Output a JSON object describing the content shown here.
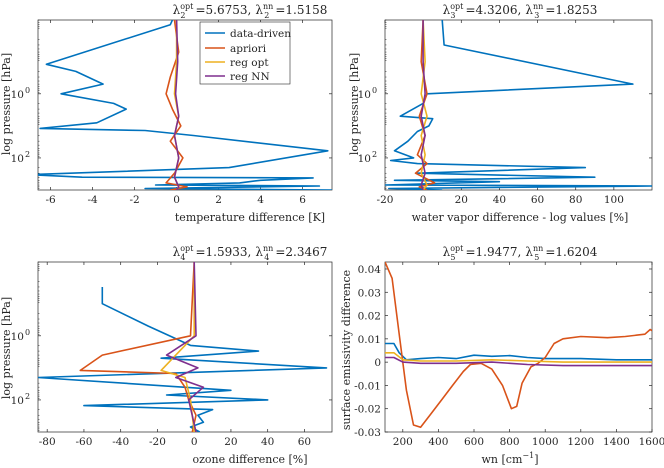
{
  "series_colors": {
    "data-driven": "#0072BD",
    "apriori": "#D95319",
    "reg opt": "#EDB120",
    "reg NN": "#7E2F8E"
  },
  "legend": [
    "data-driven",
    "apriori",
    "reg opt",
    "reg NN"
  ],
  "chart_data": [
    {
      "type": "line",
      "panel": "top-left",
      "title": "λ₂^opt =5.6753, λ₂^nn =1.5158",
      "title_parts": {
        "lambda_sub": "2",
        "opt_val": "=5.6753,",
        "nn_val": "=1.5158"
      },
      "xlabel": "temperature difference [K]",
      "ylabel": "log pressure [hPa]",
      "y_scale": "log-reversed",
      "xlim": [
        -6.6,
        7.4
      ],
      "ylim": [
        0.005,
        1000
      ],
      "xticks": [
        -6,
        -4,
        -2,
        0,
        2,
        4,
        6
      ],
      "xticklabels": [
        "-6",
        "-4",
        "-2",
        "0",
        "2",
        "4",
        "6"
      ],
      "yticks": [
        1,
        100
      ],
      "yticklabels": [
        "10^0",
        "10^2"
      ],
      "legend_position": "top-right",
      "series": [
        {
          "name": "data-driven",
          "points": [
            [
              -0.2,
              0.005
            ],
            [
              -0.3,
              0.007
            ],
            [
              -6.2,
              0.12
            ],
            [
              -4.8,
              0.2
            ],
            [
              -3.5,
              0.5
            ],
            [
              -5.5,
              1
            ],
            [
              -3,
              2
            ],
            [
              -2.4,
              3
            ],
            [
              -3.8,
              8
            ],
            [
              -6.5,
              12
            ],
            [
              -1.5,
              14
            ],
            [
              0.8,
              20
            ],
            [
              7.2,
              60
            ],
            [
              2.5,
              200
            ],
            [
              -7,
              330
            ],
            [
              -4.5,
              400
            ],
            [
              6.5,
              420
            ],
            [
              4,
              500
            ],
            [
              3,
              600
            ],
            [
              -1,
              700
            ],
            [
              6.8,
              750
            ],
            [
              -1.5,
              900
            ],
            [
              7.4,
              1000
            ]
          ]
        },
        {
          "name": "apriori",
          "points": [
            [
              -0.1,
              0.005
            ],
            [
              0.1,
              0.05
            ],
            [
              -0.3,
              0.3
            ],
            [
              -0.5,
              1
            ],
            [
              -0.2,
              3
            ],
            [
              0.2,
              10
            ],
            [
              -0.3,
              30
            ],
            [
              0.3,
              100
            ],
            [
              -0.1,
              300
            ],
            [
              -0.5,
              600
            ],
            [
              0.5,
              800
            ],
            [
              -0.3,
              1000
            ]
          ]
        },
        {
          "name": "reg opt",
          "points": [
            [
              0,
              0.005
            ],
            [
              0,
              0.1
            ],
            [
              -0.1,
              1
            ],
            [
              0.1,
              5
            ],
            [
              -0.1,
              20
            ],
            [
              0.1,
              100
            ],
            [
              -0.1,
              400
            ],
            [
              0.1,
              800
            ],
            [
              0,
              1000
            ]
          ]
        },
        {
          "name": "reg NN",
          "points": [
            [
              0,
              0.005
            ],
            [
              0.05,
              0.1
            ],
            [
              -0.05,
              1
            ],
            [
              0.1,
              5
            ],
            [
              -0.1,
              20
            ],
            [
              0.1,
              100
            ],
            [
              -0.1,
              400
            ],
            [
              0.1,
              800
            ],
            [
              0,
              1000
            ]
          ]
        }
      ]
    },
    {
      "type": "line",
      "panel": "top-right",
      "title": "λ₃^opt =4.3206, λ₃^nn =1.8253",
      "title_parts": {
        "lambda_sub": "3",
        "opt_val": "=4.3206,",
        "nn_val": "=1.8253"
      },
      "xlabel": "water vapor difference - log values [%]",
      "ylabel": "log pressure [hPa]",
      "y_scale": "log-reversed",
      "xlim": [
        -20,
        120
      ],
      "ylim": [
        0.005,
        1000
      ],
      "xticks": [
        -20,
        0,
        20,
        40,
        60,
        80,
        100
      ],
      "xticklabels": [
        "-20",
        "0",
        "20",
        "40",
        "60",
        "80",
        "100"
      ],
      "yticks": [
        1,
        100
      ],
      "yticklabels": [
        "10^0",
        "10^2"
      ],
      "series": [
        {
          "name": "data-driven",
          "points": [
            [
              10,
              0.005
            ],
            [
              11,
              0.03
            ],
            [
              110,
              0.5
            ],
            [
              2,
              1
            ],
            [
              0,
              2
            ],
            [
              -12,
              5
            ],
            [
              5,
              6
            ],
            [
              3,
              10
            ],
            [
              -3,
              15
            ],
            [
              -8,
              30
            ],
            [
              -15,
              60
            ],
            [
              -5,
              100
            ],
            [
              -17,
              120
            ],
            [
              -3,
              150
            ],
            [
              85,
              200
            ],
            [
              -3,
              300
            ],
            [
              90,
              400
            ],
            [
              -15,
              500
            ],
            [
              40,
              550
            ],
            [
              -20,
              700
            ],
            [
              120,
              750
            ],
            [
              -18,
              900
            ],
            [
              10,
              1000
            ]
          ]
        },
        {
          "name": "apriori",
          "points": [
            [
              0,
              0.005
            ],
            [
              -1,
              0.1
            ],
            [
              2,
              1
            ],
            [
              -2,
              5
            ],
            [
              1,
              20
            ],
            [
              -3,
              80
            ],
            [
              2,
              150
            ],
            [
              -4,
              300
            ],
            [
              6,
              600
            ],
            [
              -2,
              800
            ],
            [
              2,
              1000
            ]
          ]
        },
        {
          "name": "reg opt",
          "points": [
            [
              0,
              0.005
            ],
            [
              1,
              0.1
            ],
            [
              -1,
              1
            ],
            [
              2,
              5
            ],
            [
              -1,
              20
            ],
            [
              1,
              80
            ],
            [
              -1,
              300
            ],
            [
              2,
              700
            ],
            [
              0,
              1000
            ]
          ]
        },
        {
          "name": "reg NN",
          "points": [
            [
              0,
              0.005
            ],
            [
              0,
              0.1
            ],
            [
              1,
              1
            ],
            [
              -1,
              5
            ],
            [
              1,
              20
            ],
            [
              -1,
              80
            ],
            [
              1,
              300
            ],
            [
              -1,
              700
            ],
            [
              0,
              1000
            ]
          ]
        }
      ]
    },
    {
      "type": "line",
      "panel": "bottom-left",
      "title": "λ₄^opt =1.5933, λ₄^nn =2.3467",
      "title_parts": {
        "lambda_sub": "4",
        "opt_val": "=1.5933,",
        "nn_val": "=2.3467"
      },
      "xlabel": "ozone difference [%]",
      "ylabel": "log pressure [hPa]",
      "y_scale": "log-reversed",
      "xlim": [
        -85,
        75
      ],
      "ylim": [
        0.005,
        1000
      ],
      "xticks": [
        -80,
        -60,
        -40,
        -20,
        0,
        20,
        40,
        60
      ],
      "xticklabels": [
        "-80",
        "-60",
        "-40",
        "-20",
        "0",
        "20",
        "40",
        "60"
      ],
      "yticks": [
        1,
        100
      ],
      "yticklabels": [
        "10^0",
        "10^2"
      ],
      "series": [
        {
          "name": "data-driven",
          "points": [
            [
              -50,
              0.03
            ],
            [
              -50,
              0.1
            ],
            [
              -25,
              0.5
            ],
            [
              -2,
              2
            ],
            [
              35,
              3
            ],
            [
              -18,
              5
            ],
            [
              72,
              10
            ],
            [
              -85,
              20
            ],
            [
              20,
              50
            ],
            [
              -15,
              70
            ],
            [
              40,
              100
            ],
            [
              -60,
              150
            ],
            [
              10,
              200
            ],
            [
              2,
              300
            ],
            [
              5,
              500
            ],
            [
              -2,
              700
            ],
            [
              3,
              1000
            ]
          ]
        },
        {
          "name": "apriori",
          "points": [
            [
              0,
              0.005
            ],
            [
              -2,
              1
            ],
            [
              -50,
              4
            ],
            [
              -62,
              12
            ],
            [
              -10,
              15
            ],
            [
              -5,
              40
            ],
            [
              -3,
              100
            ],
            [
              1,
              300
            ],
            [
              -1,
              1000
            ]
          ]
        },
        {
          "name": "reg opt",
          "points": [
            [
              0,
              0.005
            ],
            [
              0,
              1
            ],
            [
              -10,
              4
            ],
            [
              -18,
              12
            ],
            [
              -5,
              20
            ],
            [
              -2,
              100
            ],
            [
              0,
              1000
            ]
          ]
        },
        {
          "name": "reg NN",
          "points": [
            [
              0,
              0.005
            ],
            [
              1,
              1
            ],
            [
              -15,
              4
            ],
            [
              2,
              10
            ],
            [
              -10,
              20
            ],
            [
              5,
              40
            ],
            [
              -3,
              100
            ],
            [
              1,
              1000
            ]
          ]
        }
      ]
    },
    {
      "type": "line",
      "panel": "bottom-right",
      "title": "λ₅^opt =1.9477, λ₅^nn =1.6204",
      "title_parts": {
        "lambda_sub": "5",
        "opt_val": "=1.9477,",
        "nn_val": "=1.6204"
      },
      "xlabel": "wn [cm⁻¹]",
      "ylabel": "surface emissivity difference",
      "xlim": [
        100,
        1600
      ],
      "ylim": [
        -0.03,
        0.043
      ],
      "xticks": [
        200,
        400,
        600,
        800,
        1000,
        1200,
        1400,
        1600
      ],
      "xticklabels": [
        "200",
        "400",
        "600",
        "800",
        "1000",
        "1200",
        "1400",
        "1600"
      ],
      "yticks": [
        -0.03,
        -0.02,
        -0.01,
        0,
        0.01,
        0.02,
        0.03,
        0.04
      ],
      "yticklabels": [
        "-0.03",
        "-0.02",
        "-0.01",
        "0",
        "0.01",
        "0.02",
        "0.03",
        "0.04"
      ],
      "series": [
        {
          "name": "data-driven",
          "points": [
            [
              100,
              0.008
            ],
            [
              150,
              0.008
            ],
            [
              180,
              0.004
            ],
            [
              220,
              0.001
            ],
            [
              300,
              0.0015
            ],
            [
              400,
              0.002
            ],
            [
              500,
              0.0015
            ],
            [
              600,
              0.003
            ],
            [
              700,
              0.0025
            ],
            [
              800,
              0.0028
            ],
            [
              900,
              0.002
            ],
            [
              1000,
              0.0015
            ],
            [
              1200,
              0.0015
            ],
            [
              1400,
              0.001
            ],
            [
              1600,
              0.001
            ]
          ]
        },
        {
          "name": "apriori",
          "points": [
            [
              100,
              0.043
            ],
            [
              140,
              0.036
            ],
            [
              180,
              0.012
            ],
            [
              220,
              -0.012
            ],
            [
              260,
              -0.027
            ],
            [
              300,
              -0.028
            ],
            [
              360,
              -0.022
            ],
            [
              420,
              -0.016
            ],
            [
              480,
              -0.01
            ],
            [
              540,
              -0.004
            ],
            [
              580,
              -0.001
            ],
            [
              640,
              -0.0005
            ],
            [
              700,
              -0.003
            ],
            [
              760,
              -0.01
            ],
            [
              810,
              -0.02
            ],
            [
              840,
              -0.019
            ],
            [
              870,
              -0.009
            ],
            [
              920,
              -0.002
            ],
            [
              960,
              -0.0005
            ],
            [
              1000,
              0.002
            ],
            [
              1050,
              0.008
            ],
            [
              1100,
              0.01
            ],
            [
              1200,
              0.011
            ],
            [
              1350,
              0.0105
            ],
            [
              1450,
              0.011
            ],
            [
              1560,
              0.012
            ],
            [
              1590,
              0.014
            ],
            [
              1600,
              0.0135
            ]
          ]
        },
        {
          "name": "reg opt",
          "points": [
            [
              100,
              0.004
            ],
            [
              150,
              0.004
            ],
            [
              200,
              0.001
            ],
            [
              300,
              0.0005
            ],
            [
              500,
              0.0005
            ],
            [
              700,
              0.001
            ],
            [
              900,
              0.0005
            ],
            [
              1100,
              0
            ],
            [
              1300,
              0
            ],
            [
              1600,
              0
            ]
          ]
        },
        {
          "name": "reg NN",
          "points": [
            [
              100,
              0.002
            ],
            [
              150,
              0.002
            ],
            [
              200,
              0
            ],
            [
              300,
              -0.0005
            ],
            [
              500,
              -0.0005
            ],
            [
              700,
              0
            ],
            [
              900,
              -0.001
            ],
            [
              1100,
              -0.0015
            ],
            [
              1300,
              -0.0015
            ],
            [
              1600,
              -0.0015
            ]
          ]
        }
      ]
    }
  ]
}
